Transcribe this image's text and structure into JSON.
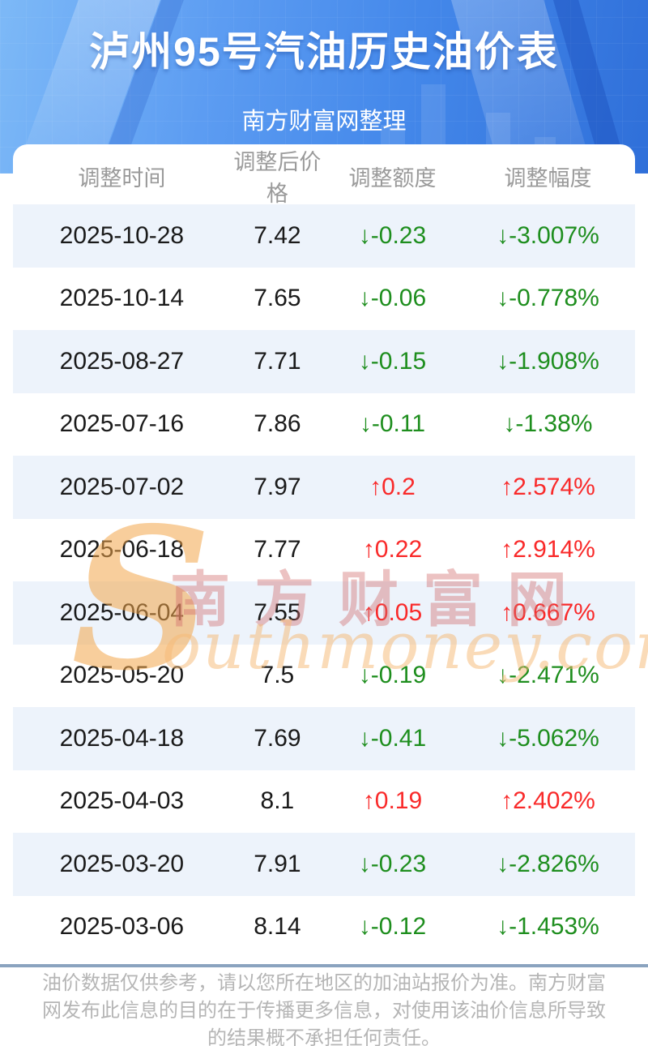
{
  "header": {
    "title": "泸州95号汽油历史油价表",
    "subtitle": "南方财富网整理"
  },
  "chart_data": {
    "type": "table",
    "title": "泸州95号汽油历史油价表",
    "subtitle": "南方财富网整理",
    "columns": [
      "调整时间",
      "调整后价格",
      "调整额度",
      "调整幅度"
    ],
    "arrow_up": "↑",
    "arrow_down": "↓",
    "rows": [
      {
        "date": "2025-10-28",
        "price": "7.42",
        "change": "-0.23",
        "percent": "-3.007%",
        "direction": "down"
      },
      {
        "date": "2025-10-14",
        "price": "7.65",
        "change": "-0.06",
        "percent": "-0.778%",
        "direction": "down"
      },
      {
        "date": "2025-08-27",
        "price": "7.71",
        "change": "-0.15",
        "percent": "-1.908%",
        "direction": "down"
      },
      {
        "date": "2025-07-16",
        "price": "7.86",
        "change": "-0.11",
        "percent": "-1.38%",
        "direction": "down"
      },
      {
        "date": "2025-07-02",
        "price": "7.97",
        "change": "0.2",
        "percent": "2.574%",
        "direction": "up"
      },
      {
        "date": "2025-06-18",
        "price": "7.77",
        "change": "0.22",
        "percent": "2.914%",
        "direction": "up"
      },
      {
        "date": "2025-06-04",
        "price": "7.55",
        "change": "0.05",
        "percent": "0.667%",
        "direction": "up"
      },
      {
        "date": "2025-05-20",
        "price": "7.5",
        "change": "-0.19",
        "percent": "-2.471%",
        "direction": "down"
      },
      {
        "date": "2025-04-18",
        "price": "7.69",
        "change": "-0.41",
        "percent": "-5.062%",
        "direction": "down"
      },
      {
        "date": "2025-04-03",
        "price": "8.1",
        "change": "0.19",
        "percent": "2.402%",
        "direction": "up"
      },
      {
        "date": "2025-03-20",
        "price": "7.91",
        "change": "-0.23",
        "percent": "-2.826%",
        "direction": "down"
      },
      {
        "date": "2025-03-06",
        "price": "8.14",
        "change": "-0.12",
        "percent": "-1.453%",
        "direction": "down"
      }
    ]
  },
  "watermark": {
    "initial": "S",
    "chinese": "南方财富网",
    "english": "outhmoney.com"
  },
  "footer": {
    "disclaimer": "油价数据仅供参考，请以您所在地区的加油站报价为准。南方财富网发布此信息的目的在于传播更多信息，对使用该油价信息所导致的结果概不承担任何责任。"
  },
  "colors": {
    "rise": "#f92a2a",
    "fall": "#1e8e1e",
    "banner_start": "#7db9f7",
    "banner_end": "#2f6fd9",
    "stripe": "#edf3fb",
    "divider": "#8aa3bf",
    "header_text": "#9a9a9a"
  }
}
